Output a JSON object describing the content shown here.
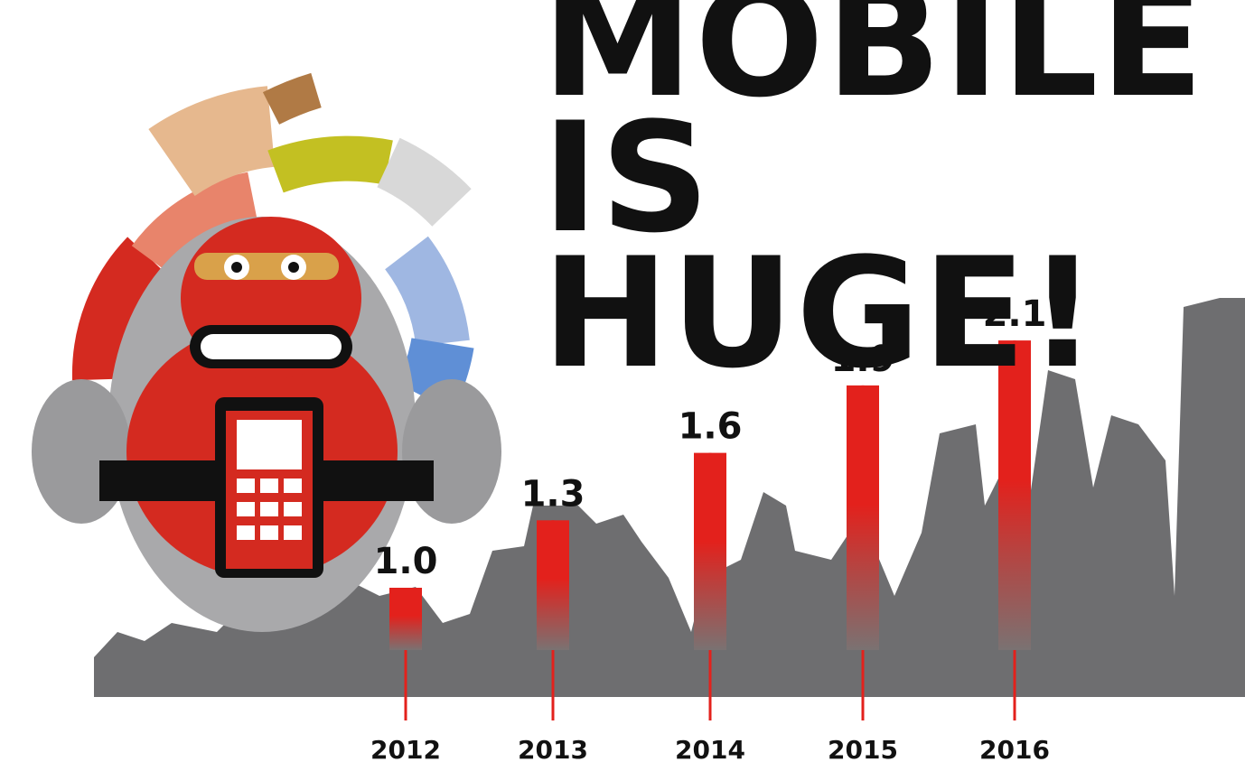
{
  "chart_data": {
    "type": "bar",
    "title": "MOBILE IS HUGE!",
    "categories": [
      "2012",
      "2013",
      "2014",
      "2015",
      "2016"
    ],
    "values": [
      1.0,
      1.3,
      1.6,
      1.9,
      2.1
    ],
    "value_labels": [
      "1.0",
      "1.3",
      "1.6",
      "1.9",
      "2.1"
    ],
    "color": "#e3211c"
  }
}
